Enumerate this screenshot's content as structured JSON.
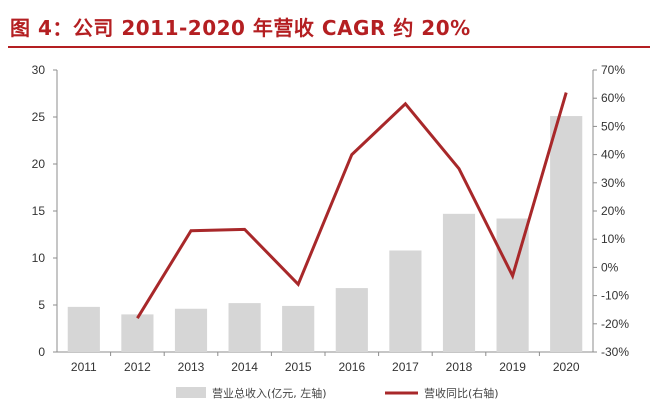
{
  "title": "图 4：公司 2011-2020 年营收 CAGR 约 20%",
  "colors": {
    "accent": "#b41f22",
    "bar": "#d6d6d6",
    "line": "#a8282a",
    "axis": "#8c8c8c"
  },
  "chart_data": {
    "type": "bar+line",
    "categories": [
      "2011",
      "2012",
      "2013",
      "2014",
      "2015",
      "2016",
      "2017",
      "2018",
      "2019",
      "2020"
    ],
    "series": [
      {
        "name": "营业总收入(亿元, 左轴)",
        "type": "bar",
        "axis": "left",
        "values": [
          4.8,
          4.0,
          4.6,
          5.2,
          4.9,
          6.8,
          10.8,
          14.7,
          14.2,
          25.1
        ]
      },
      {
        "name": "营收同比(右轴)",
        "type": "line",
        "axis": "right",
        "values": [
          null,
          -18,
          13,
          13.5,
          -6,
          40,
          58,
          35,
          -3,
          62
        ]
      }
    ],
    "y_left": {
      "min": 0,
      "max": 30,
      "step": 5,
      "ticks": [
        "0",
        "5",
        "10",
        "15",
        "20",
        "25",
        "30"
      ]
    },
    "y_right": {
      "min": -30,
      "max": 70,
      "step": 10,
      "ticks": [
        "-30%",
        "-20%",
        "-10%",
        "0%",
        "10%",
        "20%",
        "30%",
        "40%",
        "50%",
        "60%",
        "70%"
      ]
    },
    "legend": [
      "营业总收入(亿元, 左轴)",
      "营收同比(右轴)"
    ],
    "legend_position": "bottom"
  }
}
